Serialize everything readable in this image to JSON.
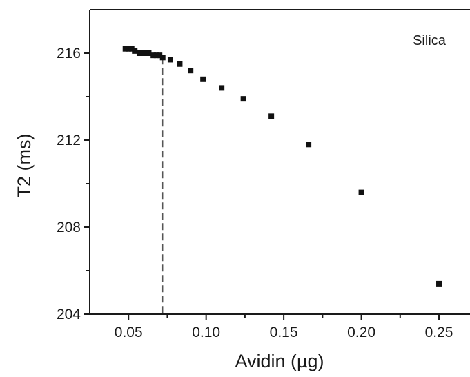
{
  "chart_data": {
    "type": "scatter",
    "title": "",
    "annotation": "Silica",
    "xlabel": "Avidin (µg)",
    "ylabel": "T2 (ms)",
    "xlim": [
      0.025,
      0.27
    ],
    "ylim": [
      204,
      218
    ],
    "xticks": [
      "0.05",
      "0.10",
      "0.15",
      "0.20",
      "0.25"
    ],
    "yticks": [
      "204",
      "208",
      "212",
      "216"
    ],
    "grid": false,
    "legend": "none",
    "marker_color": "#111111",
    "threshold_x": 0.072,
    "series": [
      {
        "x": [
          0.048,
          0.05,
          0.052,
          0.054,
          0.057,
          0.06,
          0.063,
          0.066,
          0.068,
          0.07,
          0.072,
          0.077,
          0.083,
          0.09,
          0.098,
          0.11,
          0.124,
          0.142,
          0.166,
          0.2,
          0.25
        ],
        "y": [
          216.2,
          216.2,
          216.2,
          216.1,
          216.0,
          216.0,
          216.0,
          215.9,
          215.9,
          215.9,
          215.8,
          215.7,
          215.5,
          215.2,
          214.8,
          214.4,
          213.9,
          213.1,
          211.8,
          209.6,
          205.4
        ]
      }
    ]
  }
}
